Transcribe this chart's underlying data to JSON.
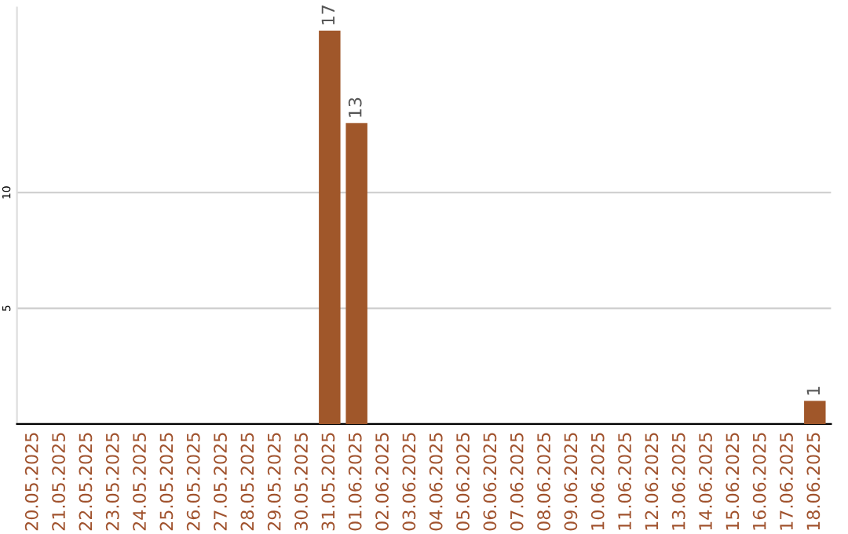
{
  "chart_data": {
    "type": "bar",
    "categories": [
      "20.05.2025",
      "21.05.2025",
      "22.05.2025",
      "23.05.2025",
      "24.05.2025",
      "25.05.2025",
      "26.05.2025",
      "27.05.2025",
      "28.05.2025",
      "29.05.2025",
      "30.05.2025",
      "31.05.2025",
      "01.06.2025",
      "02.06.2025",
      "03.06.2025",
      "04.06.2025",
      "05.06.2025",
      "06.06.2025",
      "07.06.2025",
      "08.06.2025",
      "09.06.2025",
      "10.06.2025",
      "11.06.2025",
      "12.06.2025",
      "13.06.2025",
      "14.06.2025",
      "15.06.2025",
      "16.06.2025",
      "17.06.2025",
      "18.06.2025"
    ],
    "values": [
      0,
      0,
      0,
      0,
      0,
      0,
      0,
      0,
      0,
      0,
      0,
      17,
      13,
      0,
      0,
      0,
      0,
      0,
      0,
      0,
      0,
      0,
      0,
      0,
      0,
      0,
      0,
      0,
      0,
      1
    ],
    "value_labels": [
      null,
      null,
      null,
      null,
      null,
      null,
      null,
      null,
      null,
      null,
      null,
      "17",
      "13",
      null,
      null,
      null,
      null,
      null,
      null,
      null,
      null,
      null,
      null,
      null,
      null,
      null,
      null,
      null,
      null,
      "1"
    ],
    "color": "#a0572a",
    "ylim": [
      0,
      18
    ],
    "yticks": [
      5,
      10
    ],
    "grid": "y"
  }
}
